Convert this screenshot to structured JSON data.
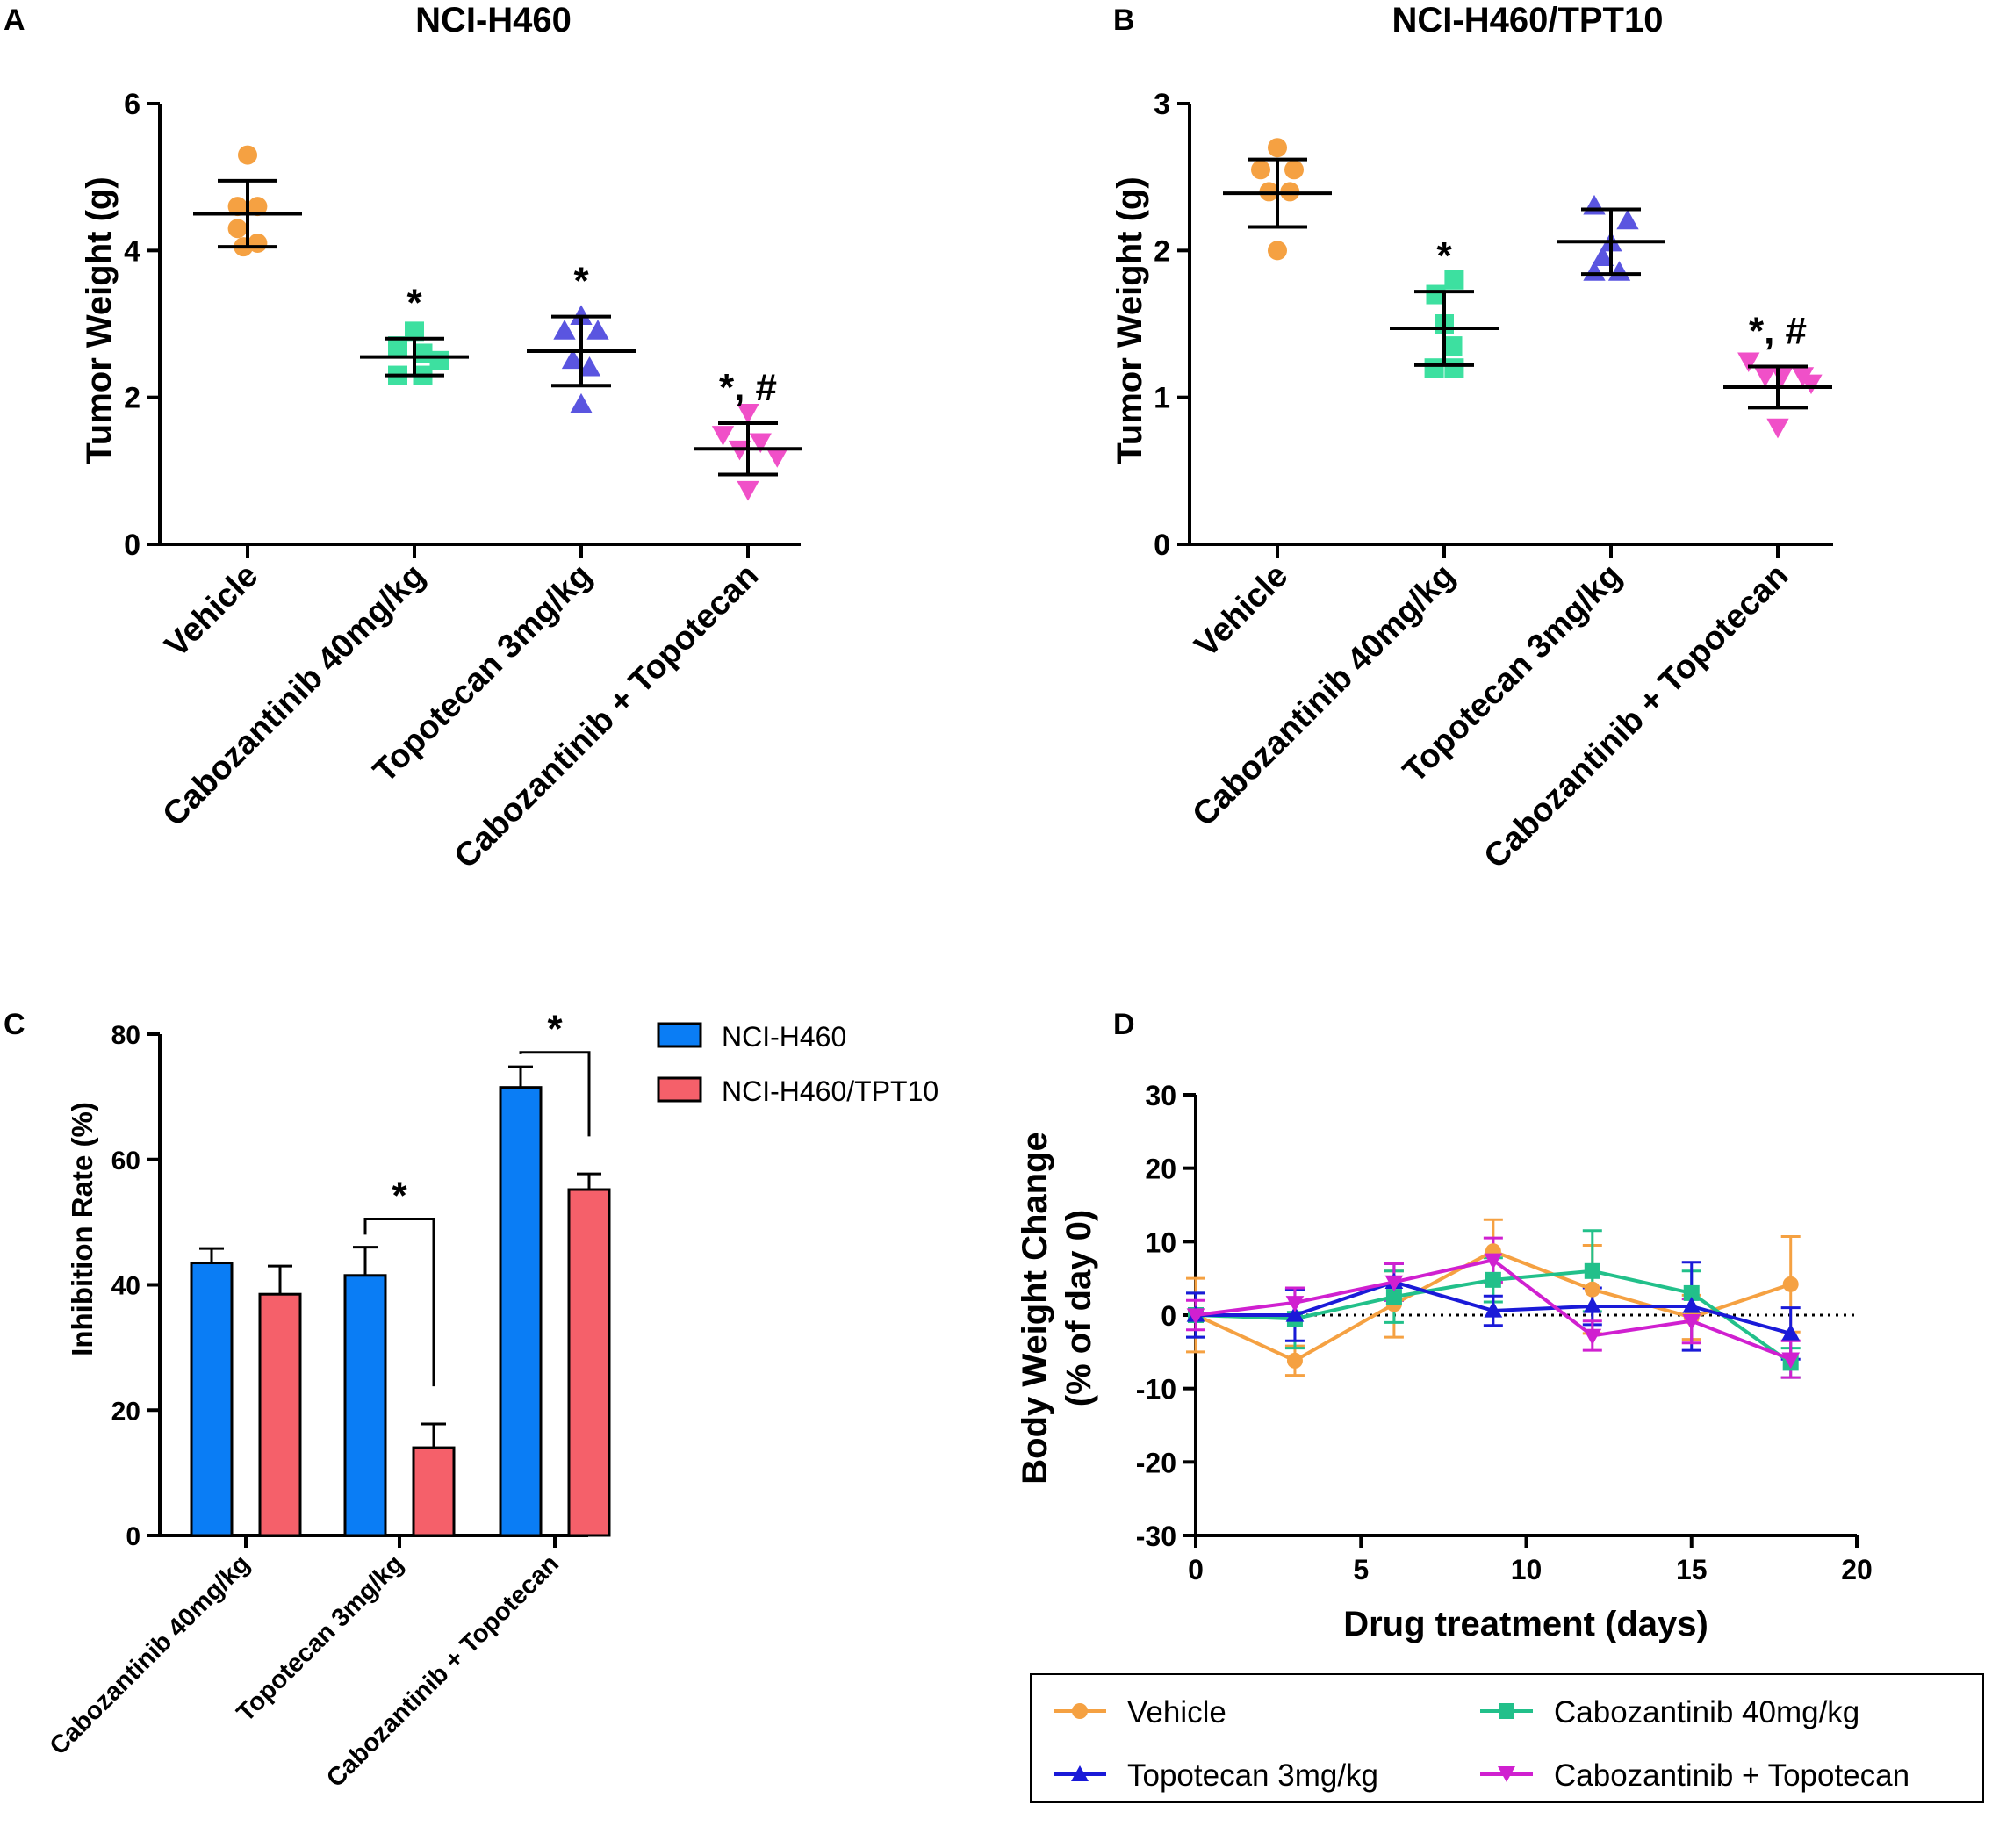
{
  "chart_data": [
    {
      "panel_label": "A",
      "type": "scatter",
      "title": "NCI-H460",
      "ylabel": "Tumor Weight (g)",
      "ylim": [
        0,
        6
      ],
      "yticks": [
        "0",
        "2",
        "4",
        "6"
      ],
      "categories": [
        "Vehicle",
        "Cabozantinib 40mg/kg",
        "Topotecan 3mg/kg",
        "Cabozantinib + Topotecan"
      ],
      "colors": [
        "#f5a142",
        "#3de0a0",
        "#5a55e0",
        "#f050c8"
      ],
      "markers": [
        "circle",
        "square",
        "triangle-up",
        "triangle-down"
      ],
      "points": [
        [
          {
            "dx": 0,
            "y": 5.3
          },
          {
            "dx": -0.12,
            "y": 4.6
          },
          {
            "dx": 0.12,
            "y": 4.6
          },
          {
            "dx": -0.12,
            "y": 4.3
          },
          {
            "dx": 0.12,
            "y": 4.1
          },
          {
            "dx": -0.05,
            "y": 4.05
          }
        ],
        [
          {
            "dx": 0,
            "y": 2.9
          },
          {
            "dx": -0.2,
            "y": 2.7
          },
          {
            "dx": 0.1,
            "y": 2.6
          },
          {
            "dx": 0.3,
            "y": 2.5
          },
          {
            "dx": -0.2,
            "y": 2.3
          },
          {
            "dx": 0.1,
            "y": 2.3
          }
        ],
        [
          {
            "dx": 0,
            "y": 3.1
          },
          {
            "dx": -0.2,
            "y": 2.9
          },
          {
            "dx": 0.2,
            "y": 2.9
          },
          {
            "dx": -0.1,
            "y": 2.5
          },
          {
            "dx": 0.1,
            "y": 2.4
          },
          {
            "dx": 0,
            "y": 1.9
          }
        ],
        [
          {
            "dx": 0,
            "y": 1.8
          },
          {
            "dx": -0.3,
            "y": 1.5
          },
          {
            "dx": -0.1,
            "y": 1.3
          },
          {
            "dx": 0.15,
            "y": 1.4
          },
          {
            "dx": 0.35,
            "y": 1.2
          },
          {
            "dx": 0,
            "y": 0.75
          }
        ]
      ],
      "means": [
        4.5,
        2.55,
        2.63,
        1.3
      ],
      "sd": [
        0.45,
        0.25,
        0.47,
        0.35
      ],
      "annotations": [
        "",
        "*",
        "*",
        "*, #"
      ]
    },
    {
      "panel_label": "B",
      "type": "scatter",
      "title": "NCI-H460/TPT10",
      "ylabel": "Tumor Weight (g)",
      "ylim": [
        0,
        3
      ],
      "yticks": [
        "0",
        "1",
        "2",
        "3"
      ],
      "categories": [
        "Vehicle",
        "Cabozantinib 40mg/kg",
        "Topotecan 3mg/kg",
        "Cabozantinib + Topotecan"
      ],
      "colors": [
        "#f5a142",
        "#3de0a0",
        "#5a55e0",
        "#f050c8"
      ],
      "markers": [
        "circle",
        "square",
        "triangle-up",
        "triangle-down"
      ],
      "points": [
        [
          {
            "dx": 0,
            "y": 2.7
          },
          {
            "dx": -0.2,
            "y": 2.55
          },
          {
            "dx": 0.2,
            "y": 2.55
          },
          {
            "dx": -0.1,
            "y": 2.4
          },
          {
            "dx": 0.15,
            "y": 2.4
          },
          {
            "dx": 0,
            "y": 2.0
          }
        ],
        [
          {
            "dx": 0.12,
            "y": 1.8
          },
          {
            "dx": -0.1,
            "y": 1.7
          },
          {
            "dx": 0,
            "y": 1.5
          },
          {
            "dx": 0.1,
            "y": 1.35
          },
          {
            "dx": -0.12,
            "y": 1.2
          },
          {
            "dx": 0.12,
            "y": 1.2
          }
        ],
        [
          {
            "dx": -0.2,
            "y": 2.3
          },
          {
            "dx": 0.2,
            "y": 2.2
          },
          {
            "dx": 0,
            "y": 2.05
          },
          {
            "dx": -0.1,
            "y": 1.95
          },
          {
            "dx": -0.2,
            "y": 1.85
          },
          {
            "dx": 0.1,
            "y": 1.85
          }
        ],
        [
          {
            "dx": -0.35,
            "y": 1.25
          },
          {
            "dx": -0.15,
            "y": 1.15
          },
          {
            "dx": 0.05,
            "y": 1.15
          },
          {
            "dx": 0.3,
            "y": 1.15
          },
          {
            "dx": 0.4,
            "y": 1.1
          },
          {
            "dx": 0,
            "y": 0.8
          }
        ]
      ],
      "means": [
        2.39,
        1.47,
        2.06,
        1.07
      ],
      "sd": [
        0.23,
        0.25,
        0.22,
        0.14
      ],
      "annotations": [
        "",
        "*",
        "",
        "*, #"
      ]
    },
    {
      "panel_label": "C",
      "type": "bar",
      "ylabel": "Inhibition Rate (%)",
      "ylim": [
        0,
        80
      ],
      "yticks": [
        "0",
        "20",
        "40",
        "60",
        "80"
      ],
      "categories": [
        "Cabozantinib 40mg/kg",
        "Topotecan 3mg/kg",
        "Cabozantinib + Topotecan"
      ],
      "series": [
        {
          "name": "NCI-H460",
          "color": "#0a7df5",
          "values": [
            43.5,
            41.5,
            71.5
          ],
          "errors": [
            2.3,
            4.5,
            3.3
          ]
        },
        {
          "name": "NCI-H460/TPT10",
          "color": "#f5606a",
          "values": [
            38.5,
            14.0,
            55.2
          ],
          "errors": [
            4.5,
            3.8,
            2.5
          ]
        }
      ],
      "significance": [
        {
          "category": 1,
          "label": "*"
        },
        {
          "category": 2,
          "label": "*"
        }
      ]
    },
    {
      "panel_label": "D",
      "type": "line",
      "xlabel": "Drug treatment (days)",
      "ylabel": "Body Weight Change",
      "ylabel2": "(% of day 0)",
      "xlim": [
        0,
        20
      ],
      "ylim": [
        -30,
        30
      ],
      "xticks": [
        "0",
        "5",
        "10",
        "15",
        "20"
      ],
      "yticks": [
        "-30",
        "-20",
        "-10",
        "0",
        "10",
        "20",
        "30"
      ],
      "x": [
        0,
        3,
        6,
        9,
        12,
        15,
        18
      ],
      "series": [
        {
          "name": "Vehicle",
          "color": "#f5a142",
          "marker": "circle",
          "values": [
            0,
            -6.2,
            1.5,
            8.7,
            3.5,
            -0.3,
            4.2
          ],
          "errors": [
            5,
            2,
            4.5,
            4.3,
            6,
            3,
            6.5
          ]
        },
        {
          "name": "Cabozantinib 40mg/kg",
          "color": "#22c08a",
          "marker": "square",
          "values": [
            0,
            -0.5,
            2.5,
            4.8,
            6.0,
            3.0,
            -6.5
          ],
          "errors": [
            3,
            4,
            3.5,
            3,
            5.5,
            3,
            2
          ]
        },
        {
          "name": "Topotecan 3mg/kg",
          "color": "#1a1ad8",
          "marker": "triangle-up",
          "values": [
            0,
            0,
            4.5,
            0.6,
            1.2,
            1.2,
            -2.5
          ],
          "errors": [
            3,
            3.5,
            2.5,
            2,
            2.5,
            6,
            3.5
          ]
        },
        {
          "name": "Cabozantinib + Topotecan",
          "color": "#d020d0",
          "marker": "triangle-down",
          "values": [
            0,
            1.7,
            4.5,
            7.5,
            -2.8,
            -0.8,
            -6.0
          ],
          "errors": [
            2,
            2,
            2.5,
            3,
            2,
            3,
            2.5
          ]
        }
      ]
    }
  ]
}
